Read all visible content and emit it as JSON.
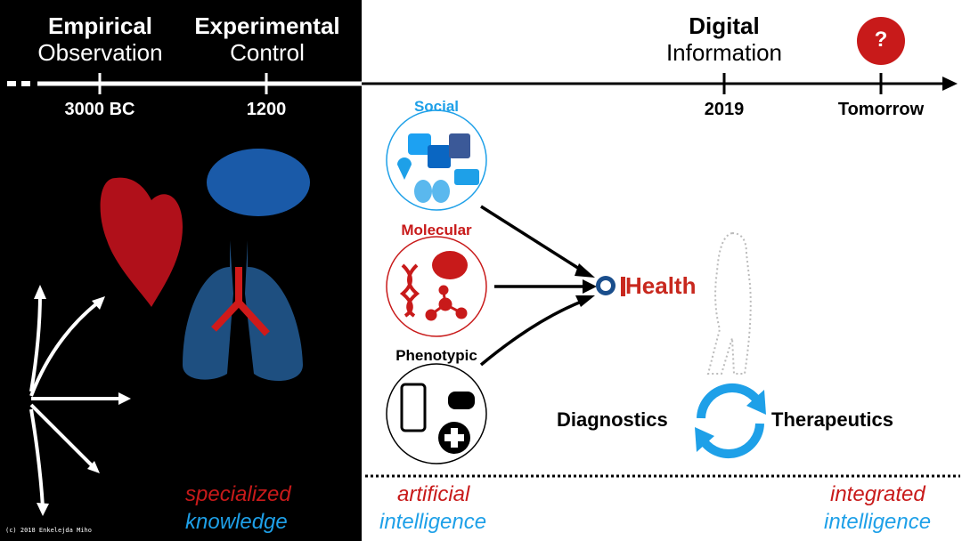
{
  "timeline": {
    "eras": [
      {
        "title": "Empirical",
        "subtitle": "Observation",
        "tick": "3000 BC"
      },
      {
        "title": "Experimental",
        "subtitle": "Control",
        "tick": "1200"
      },
      {
        "title": "Digital",
        "subtitle": "Information",
        "tick": "2019"
      },
      {
        "title": "?",
        "subtitle": "",
        "tick": "Tomorrow"
      }
    ]
  },
  "data_sources": [
    {
      "label": "Social",
      "color": "#1ea0e8",
      "icons": [
        "twitter-icon",
        "linkedin-icon",
        "facebook-icon",
        "location-pin-icon",
        "theater-masks-icon",
        "credit-card-icon"
      ]
    },
    {
      "label": "Molecular",
      "color": "#c81a1a",
      "icons": [
        "dna-icon",
        "cell-icon",
        "molecule-icon"
      ]
    },
    {
      "label": "Phenotypic",
      "color": "#000000",
      "icons": [
        "smartphone-person-icon",
        "burger-icon",
        "medical-cross-icon"
      ]
    }
  ],
  "logo": {
    "prefix": "ai",
    "text": "Health",
    "color": "#c8281e",
    "accent": "#1a4e8c"
  },
  "cycle": {
    "left": "Diagnostics",
    "right": "Therapeutics",
    "color": "#1ea0e8"
  },
  "captions": {
    "left": {
      "line1": "specialized",
      "line2": "knowledge"
    },
    "middle": {
      "line1": "artificial",
      "line2": "intelligence"
    },
    "right": {
      "line1": "integrated",
      "line2": "intelligence"
    }
  },
  "colors": {
    "red": "#c81a1a",
    "blue": "#1ea0e8"
  },
  "copyright": "(c) 2018 Enkelejda Miho"
}
